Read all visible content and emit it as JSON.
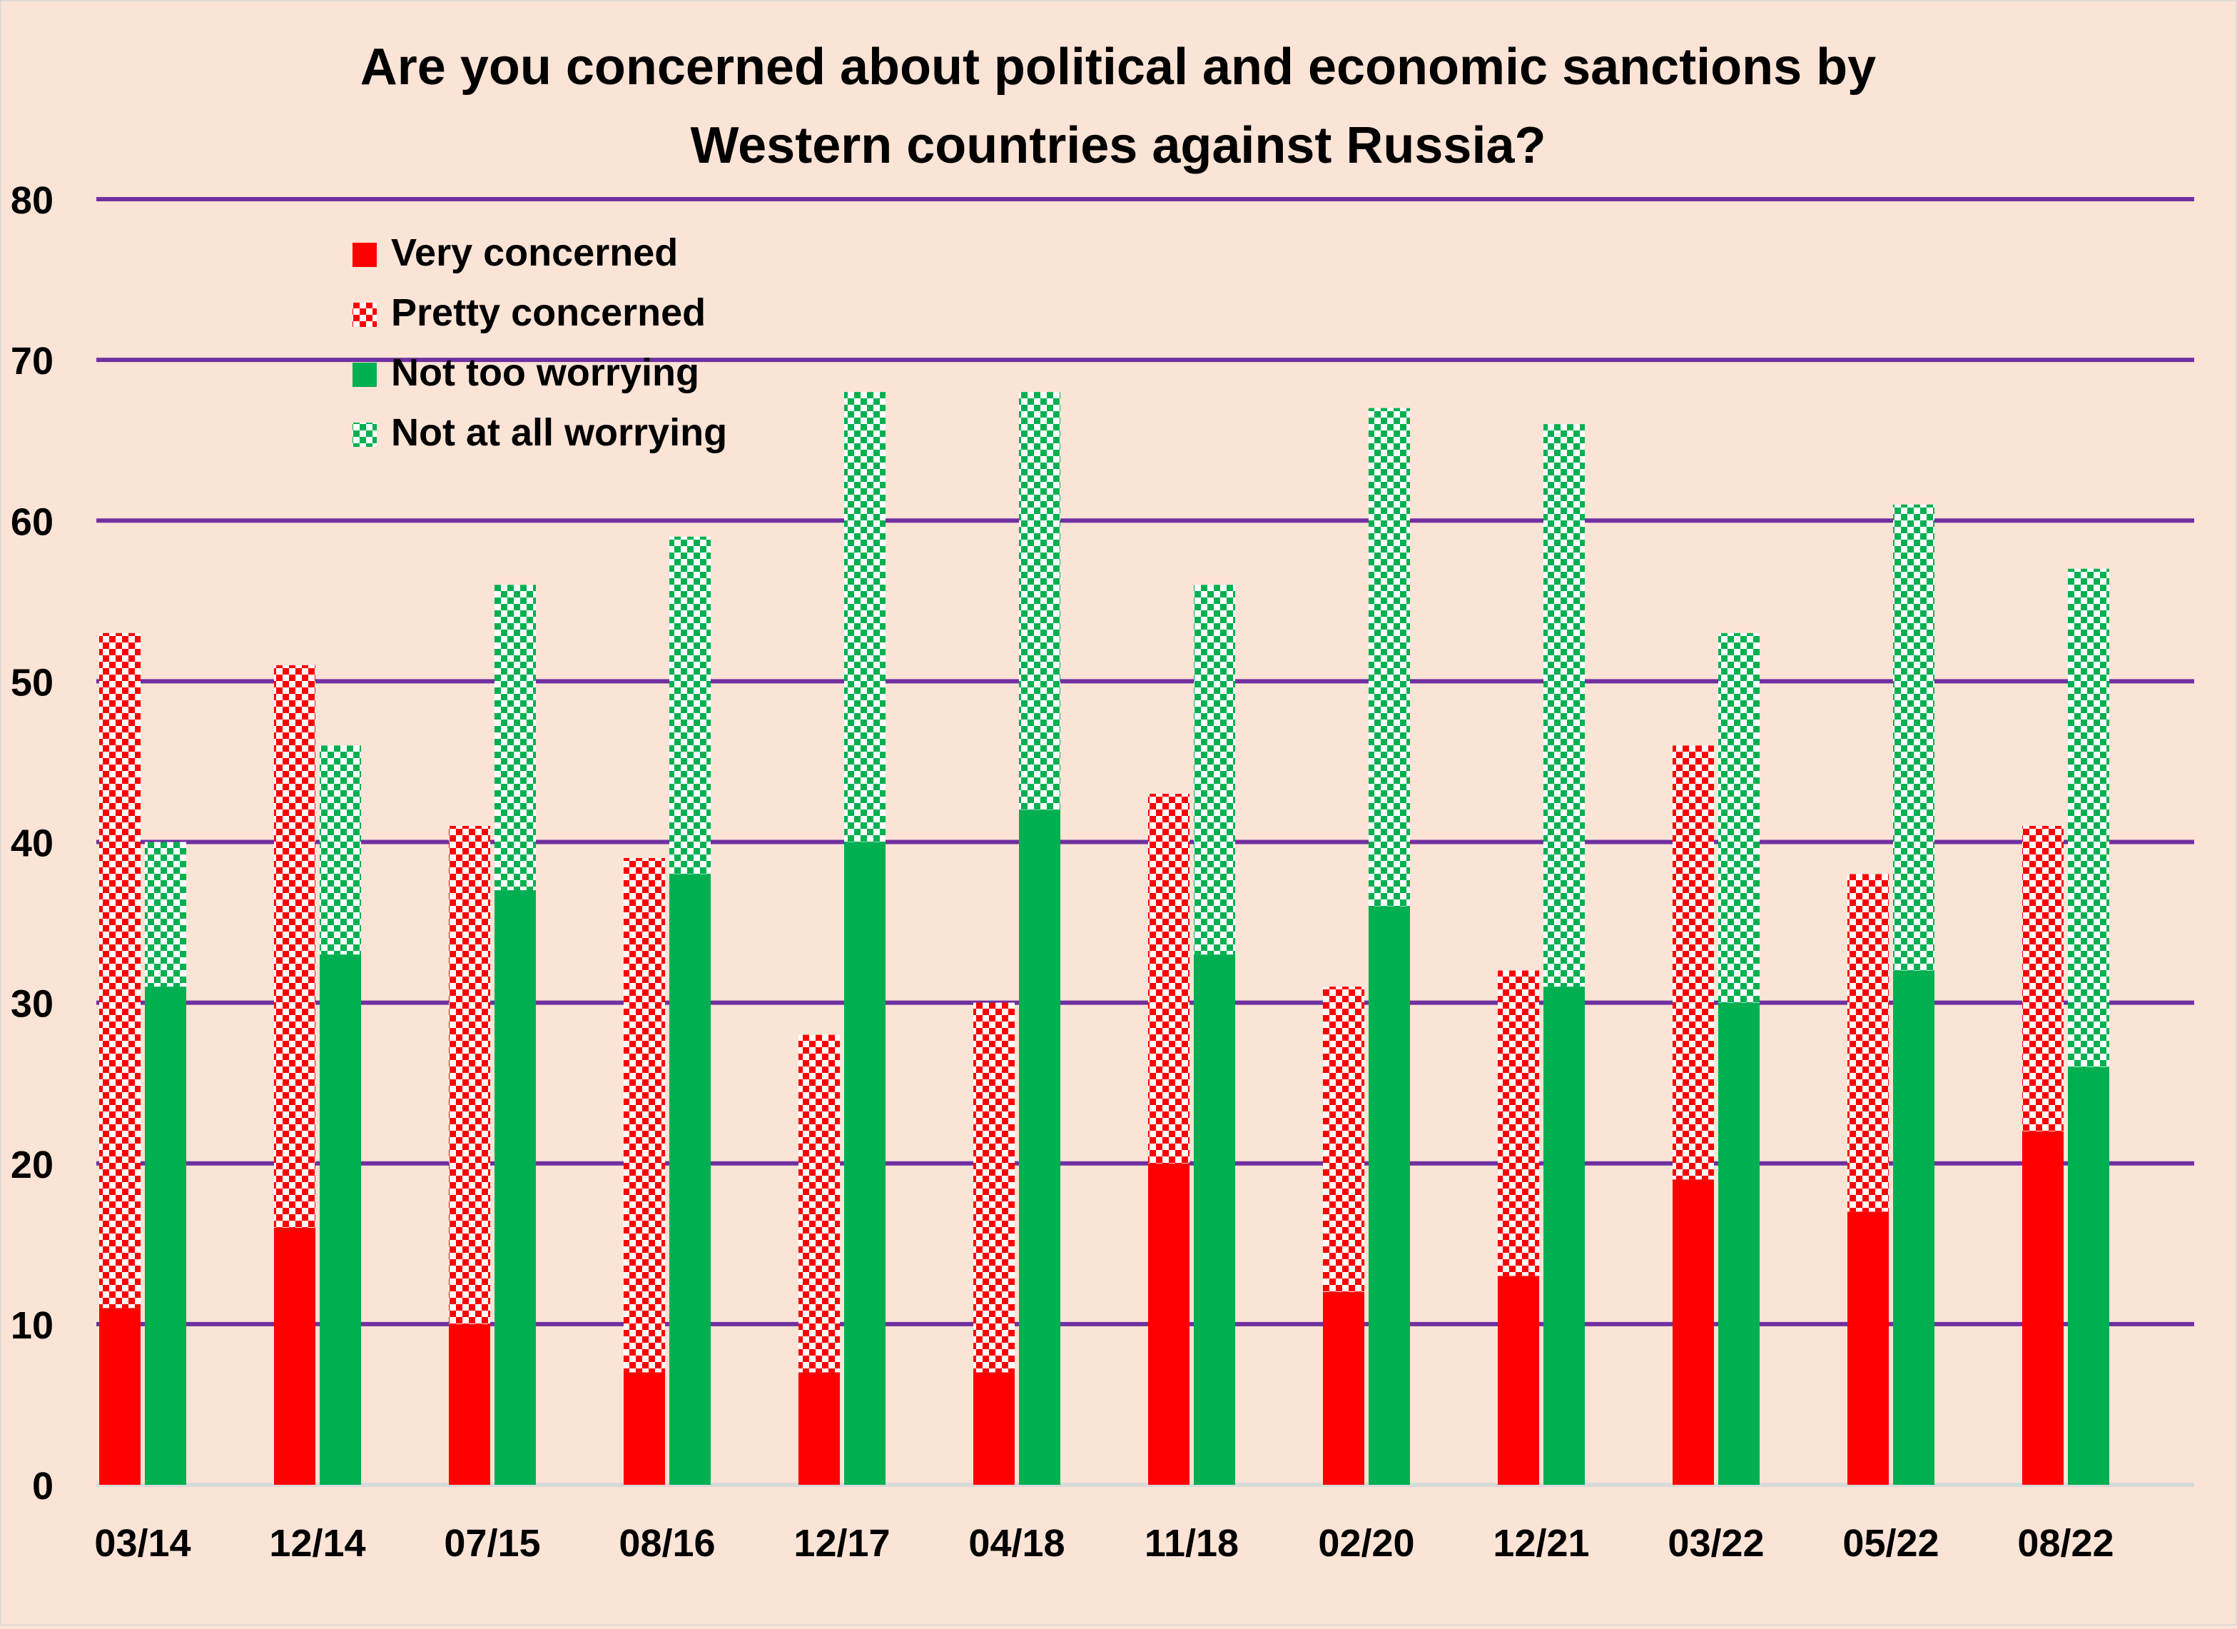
{
  "chart_data": {
    "type": "bar",
    "title_line1": "Are you concerned about political and economic sanctions by",
    "title_line2": "Western countries against Russia?",
    "categories": [
      "03/14",
      "12/14",
      "07/15",
      "08/16",
      "12/17",
      "04/18",
      "11/18",
      "02/20",
      "12/21",
      "03/22",
      "05/22",
      "08/22"
    ],
    "ylim": [
      0,
      80
    ],
    "yticks": [
      0,
      10,
      20,
      30,
      40,
      50,
      60,
      70,
      80
    ],
    "grid": true,
    "legend_position": "top-left",
    "stacks": [
      {
        "name": "concerned",
        "series": [
          "Very concerned",
          "Pretty concerned"
        ]
      },
      {
        "name": "not-worried",
        "series": [
          "Not too worrying",
          "Not at all worrying"
        ]
      }
    ],
    "series": [
      {
        "name": "Very concerned",
        "color": "#ff0000",
        "pattern": "solid",
        "values": [
          11,
          16,
          10,
          7,
          7,
          7,
          20,
          12,
          13,
          19,
          17,
          22
        ]
      },
      {
        "name": "Pretty concerned",
        "color": "#ff0000",
        "pattern": "checker",
        "values": [
          42,
          35,
          31,
          32,
          21,
          23,
          23,
          19,
          19,
          27,
          21,
          19
        ]
      },
      {
        "name": "Not too worrying",
        "color": "#00b050",
        "pattern": "solid",
        "values": [
          31,
          33,
          37,
          38,
          40,
          42,
          33,
          36,
          31,
          30,
          32,
          26
        ]
      },
      {
        "name": "Not at all worrying",
        "color": "#00b050",
        "pattern": "checker",
        "values": [
          9,
          13,
          19,
          21,
          28,
          26,
          23,
          31,
          35,
          23,
          29,
          31
        ]
      }
    ],
    "colors": {
      "background": "#fbe3d6",
      "gridline": "#7030a0"
    }
  }
}
